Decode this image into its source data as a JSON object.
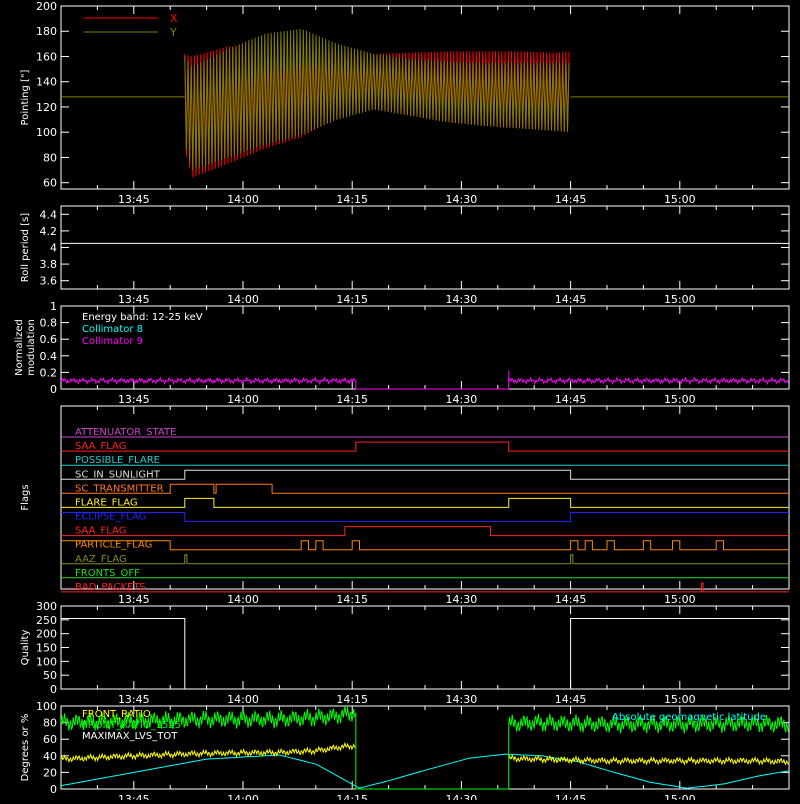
{
  "time_axis": {
    "tick_labels": [
      "13:45",
      "14:00",
      "14:15",
      "14:30",
      "14:45",
      "15:00"
    ],
    "tick_minutes": [
      825,
      840,
      855,
      870,
      885,
      900
    ],
    "range_minutes": [
      815,
      915
    ]
  },
  "chart_data": [
    {
      "type": "line",
      "id": "pointing",
      "ylabel": "Pointing [\"]",
      "ylim": [
        55,
        200
      ],
      "yticks": [
        60,
        80,
        100,
        120,
        140,
        160,
        180,
        200
      ],
      "legend": {
        "placement": "top-left",
        "entries": [
          {
            "name": "X",
            "color": "#ff0000"
          },
          {
            "name": "Y",
            "color": "#808000"
          }
        ]
      },
      "baseline_value": 128,
      "series": [
        {
          "name": "X",
          "color": "#ff0000",
          "data_window": [
            832,
            885
          ],
          "envelope": {
            "t": [
              832,
              833,
              838,
              843,
              848,
              853,
              858,
              863,
              868,
              873,
              878,
              883,
              885
            ],
            "max": [
              162,
              160,
              168,
              170,
              172,
              165,
              162,
              163,
              164,
              164,
              164,
              163,
              164
            ],
            "min": [
              85,
              64,
              75,
              87,
              96,
              112,
              118,
              113,
              108,
              105,
              103,
              101,
              100
            ]
          }
        },
        {
          "name": "Y",
          "color": "#808000",
          "data_window": [
            832,
            885
          ],
          "envelope": {
            "t": [
              832,
              833,
              838,
              843,
              848,
              853,
              858,
              863,
              868,
              873,
              878,
              883,
              885
            ],
            "max": [
              160,
              152,
              166,
              178,
              182,
              170,
              162,
              158,
              156,
              155,
              155,
              155,
              155
            ],
            "min": [
              90,
              70,
              80,
              90,
              98,
              110,
              118,
              113,
              108,
              105,
              103,
              101,
              100
            ]
          }
        }
      ]
    },
    {
      "type": "line",
      "id": "roll",
      "ylabel": "Roll period [s]",
      "ylim": [
        3.5,
        4.5
      ],
      "yticks": [
        3.6,
        3.8,
        4.0,
        4.2,
        4.4
      ],
      "series": [
        {
          "name": "",
          "color": "#ffffff",
          "x": [
            815,
            915
          ],
          "y": [
            4.05,
            4.05
          ]
        }
      ]
    },
    {
      "type": "line",
      "id": "modulation",
      "ylabel": "Normalized modulation",
      "ylabel_lines": [
        "Normalized",
        "modulation"
      ],
      "ylim": [
        0,
        1
      ],
      "yticks": [
        0.0,
        0.2,
        0.4,
        0.6,
        0.8,
        1.0
      ],
      "annotations": [
        {
          "text": "Energy band: 12-25 keV",
          "color": "#ffffff"
        },
        {
          "text": "Collimator 8",
          "color": "#00ffff"
        },
        {
          "text": "Collimator 9",
          "color": "#ff00ff"
        }
      ],
      "series": [
        {
          "name": "Collimator 9",
          "color": "#ff00ff",
          "segments": [
            [
              815,
              855.5
            ],
            [
              876.5,
              915
            ]
          ],
          "level": 0.1,
          "spike": {
            "t": 876.5,
            "y": 0.22
          }
        }
      ]
    },
    {
      "type": "line",
      "id": "flags",
      "ylabel": "Flags",
      "flags": [
        {
          "name": "ATTENUATOR_STATE",
          "color": "#cc44cc",
          "steps": [
            [
              815,
              0
            ]
          ]
        },
        {
          "name": "SAA_FLAG",
          "color": "#ff2222",
          "steps": [
            [
              815,
              0
            ],
            [
              855.5,
              1
            ],
            [
              876.5,
              0
            ]
          ]
        },
        {
          "name": "POSSIBLE_FLARE",
          "color": "#22cccc",
          "steps": [
            [
              815,
              0
            ]
          ]
        },
        {
          "name": "SC_IN_SUNLIGHT",
          "color": "#dddddd",
          "steps": [
            [
              815,
              0
            ],
            [
              832,
              1
            ],
            [
              885,
              0
            ]
          ]
        },
        {
          "name": "SC_TRANSMITTER",
          "color": "#ff7722",
          "steps": [
            [
              815,
              0
            ],
            [
              830,
              1
            ],
            [
              836,
              0
            ],
            [
              836.3,
              1
            ],
            [
              844,
              0
            ]
          ]
        },
        {
          "name": "FLARE_FLAG",
          "color": "#ffee22",
          "steps": [
            [
              815,
              0
            ],
            [
              832,
              1
            ],
            [
              836,
              0
            ],
            [
              876.5,
              1
            ],
            [
              885,
              0
            ]
          ]
        },
        {
          "name": "ECLIPSE_FLAG",
          "color": "#2222ff",
          "steps": [
            [
              815,
              1
            ],
            [
              832,
              0
            ],
            [
              885,
              1
            ]
          ]
        },
        {
          "name": "SAA_FLAG",
          "color": "#ff2222",
          "steps": [
            [
              815,
              0
            ],
            [
              854,
              1
            ],
            [
              874,
              0
            ]
          ]
        },
        {
          "name": "PARTICLE_FLAG",
          "color": "#ff8800",
          "steps": [
            [
              815,
              1
            ],
            [
              830,
              0
            ],
            [
              848,
              1
            ],
            [
              849,
              0
            ],
            [
              850,
              1
            ],
            [
              851,
              0
            ],
            [
              855,
              1
            ],
            [
              856,
              0
            ],
            [
              885,
              1
            ],
            [
              886,
              0
            ],
            [
              887,
              1
            ],
            [
              888,
              0
            ],
            [
              890,
              1
            ],
            [
              891,
              0
            ],
            [
              895,
              1
            ],
            [
              896,
              0
            ],
            [
              899,
              1
            ],
            [
              900,
              0
            ],
            [
              905,
              1
            ],
            [
              906,
              0
            ]
          ]
        },
        {
          "name": "AAZ_FLAG",
          "color": "#888822",
          "steps": [
            [
              815,
              0
            ],
            [
              832,
              1
            ],
            [
              832.3,
              0
            ],
            [
              885,
              1
            ],
            [
              885.3,
              0
            ]
          ]
        },
        {
          "name": "FRONTS_OFF",
          "color": "#22dd22",
          "steps": [
            [
              815,
              0
            ]
          ]
        },
        {
          "name": "BAD_PACKETS",
          "color": "#ff2222",
          "steps": [
            [
              815,
              0
            ],
            [
              903,
              1
            ],
            [
              903.2,
              0
            ]
          ]
        }
      ]
    },
    {
      "type": "line",
      "id": "quality",
      "ylabel": "Quality",
      "ylim": [
        0,
        300
      ],
      "yticks": [
        0,
        50,
        100,
        150,
        200,
        250,
        300
      ],
      "series": [
        {
          "name": "",
          "color": "#ffffff",
          "x": [
            815,
            832,
            832,
            885,
            885,
            915
          ],
          "y": [
            255,
            255,
            0,
            0,
            255,
            255
          ]
        }
      ]
    },
    {
      "type": "line",
      "id": "geomagnetic",
      "ylabel": "Degrees or %",
      "ylim": [
        0,
        100
      ],
      "yticks": [
        0,
        20,
        40,
        60,
        80,
        100
      ],
      "legend_left": [
        {
          "name": "FRONT_RATIO",
          "color": "#ffff00"
        },
        {
          "name": "FRONT_RATIO_1525",
          "color": "#00ff00"
        },
        {
          "name": "MAXIMAX_LVS_TOT",
          "color": "#ffffff"
        }
      ],
      "legend_right": [
        {
          "name": "Absolute geomagnetic latitude",
          "color": "#00ffff"
        }
      ],
      "series": [
        {
          "name": "Absolute geomagnetic latitude",
          "color": "#00ffff",
          "x": [
            815,
            825,
            835,
            845,
            850,
            856,
            860,
            866,
            871,
            876,
            881,
            886,
            891,
            896,
            901,
            906,
            911,
            915
          ],
          "y": [
            4,
            20,
            36,
            41,
            30,
            1,
            10,
            25,
            37,
            42,
            40,
            33,
            20,
            8,
            1,
            6,
            16,
            22
          ]
        },
        {
          "name": "FRONT_RATIO",
          "color": "#ffff00",
          "x": [
            815,
            825,
            835,
            845,
            850,
            853,
            855,
            876,
            880,
            890,
            900,
            910,
            915
          ],
          "y": [
            36,
            40,
            43,
            44,
            46,
            50,
            52,
            37,
            36,
            34,
            34,
            34,
            33
          ]
        },
        {
          "name": "FRONT_RATIO_1525",
          "color": "#00ff00",
          "x": [
            815,
            825,
            835,
            845,
            850,
            853,
            855,
            876,
            880,
            890,
            900,
            910,
            915
          ],
          "y": [
            80,
            82,
            84,
            84,
            86,
            88,
            92,
            78,
            80,
            78,
            78,
            79,
            78
          ]
        }
      ]
    }
  ]
}
